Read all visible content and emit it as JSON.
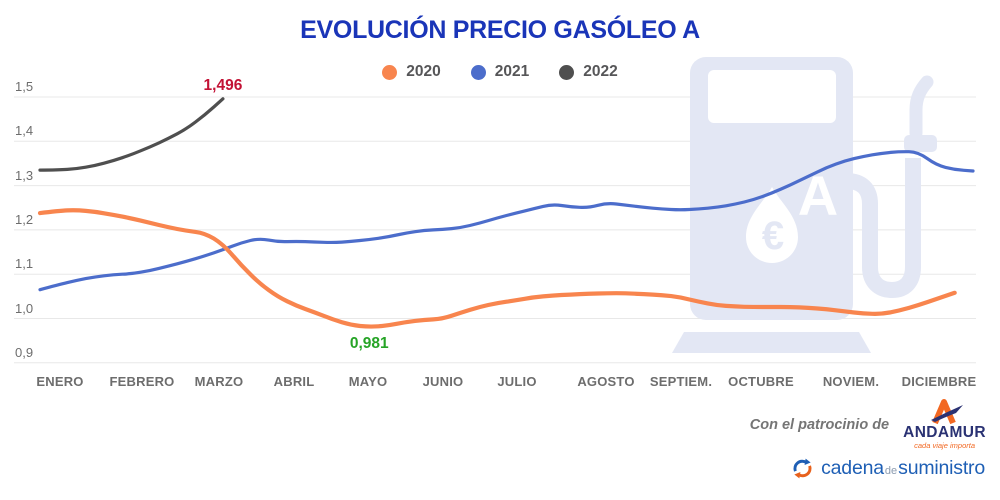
{
  "title": "EVOLUCIÓN PRECIO GASÓLEO A",
  "title_color": "#1A35B8",
  "chart_data": {
    "type": "line",
    "grid": "horizontal",
    "legend_position": "top",
    "x_axis": {
      "months": [
        "ENERO",
        "FEBRERO",
        "MARZO",
        "ABRIL",
        "MAYO",
        "JUNIO",
        "JULIO",
        "AGOSTO",
        "SEPTIEM.",
        "OCTUBRE",
        "NOVIEM.",
        "DICIEMBRE"
      ]
    },
    "y_axis": {
      "min": 0.9,
      "max": 1.5,
      "ticks": [
        {
          "label": "1,5",
          "v": 1.5
        },
        {
          "label": "1,4",
          "v": 1.4
        },
        {
          "label": "1,3",
          "v": 1.3
        },
        {
          "label": "1,2",
          "v": 1.2
        },
        {
          "label": "1,1",
          "v": 1.1
        },
        {
          "label": "1,0",
          "v": 1.0
        },
        {
          "label": "0,9",
          "v": 0.9
        }
      ]
    },
    "series": [
      {
        "name": "2020",
        "color": "#F8854E",
        "stroke_width": 4.2,
        "values": [
          1.238,
          1.243,
          1.245,
          1.241,
          1.234,
          1.226,
          1.216,
          1.206,
          1.198,
          1.193,
          1.168,
          1.12,
          1.079,
          1.049,
          1.029,
          1.014,
          0.998,
          0.985,
          0.981,
          0.984,
          0.992,
          0.997,
          0.999,
          1.013,
          1.026,
          1.035,
          1.041,
          1.048,
          1.052,
          1.054,
          1.056,
          1.057,
          1.057,
          1.055,
          1.053,
          1.048,
          1.038,
          1.03,
          1.027,
          1.026,
          1.026,
          1.026,
          1.024,
          1.021,
          1.016,
          1.011,
          1.01,
          1.018,
          1.03,
          1.044,
          1.058
        ]
      },
      {
        "name": "2021",
        "color": "#4C6DCB",
        "stroke_width": 3.2,
        "values": [
          1.065,
          1.076,
          1.086,
          1.094,
          1.099,
          1.101,
          1.108,
          1.118,
          1.129,
          1.141,
          1.155,
          1.171,
          1.181,
          1.173,
          1.174,
          1.173,
          1.171,
          1.174,
          1.178,
          1.184,
          1.193,
          1.199,
          1.201,
          1.205,
          1.215,
          1.227,
          1.238,
          1.248,
          1.258,
          1.252,
          1.25,
          1.261,
          1.256,
          1.251,
          1.247,
          1.245,
          1.247,
          1.251,
          1.258,
          1.268,
          1.283,
          1.301,
          1.321,
          1.341,
          1.356,
          1.366,
          1.373,
          1.377,
          1.376,
          1.346,
          1.336,
          1.333
        ]
      },
      {
        "name": "2022",
        "color": "#4F4F4F",
        "stroke_width": 3.2,
        "values": [
          1.335,
          1.335,
          1.338,
          1.345,
          1.356,
          1.37,
          1.387,
          1.406,
          1.428,
          1.459,
          1.496
        ]
      }
    ],
    "annotations": {
      "max": {
        "text": "1,496",
        "color": "#C31235",
        "series": "2022",
        "at": "last-point"
      },
      "min": {
        "text": "0,981",
        "color": "#26A426",
        "series": "2020",
        "at": "min-point"
      }
    }
  },
  "watermark": {
    "currency_symbol": "€",
    "fuel_letter": "A",
    "color": "#E3E7F4"
  },
  "footer": {
    "sponsor_prefix": "Con el patrocinio de",
    "sponsor_name": "ANDAMUR",
    "sponsor_tagline": "cada viaje importa",
    "publisher_words": [
      "cadena",
      "de",
      "suministro"
    ]
  }
}
